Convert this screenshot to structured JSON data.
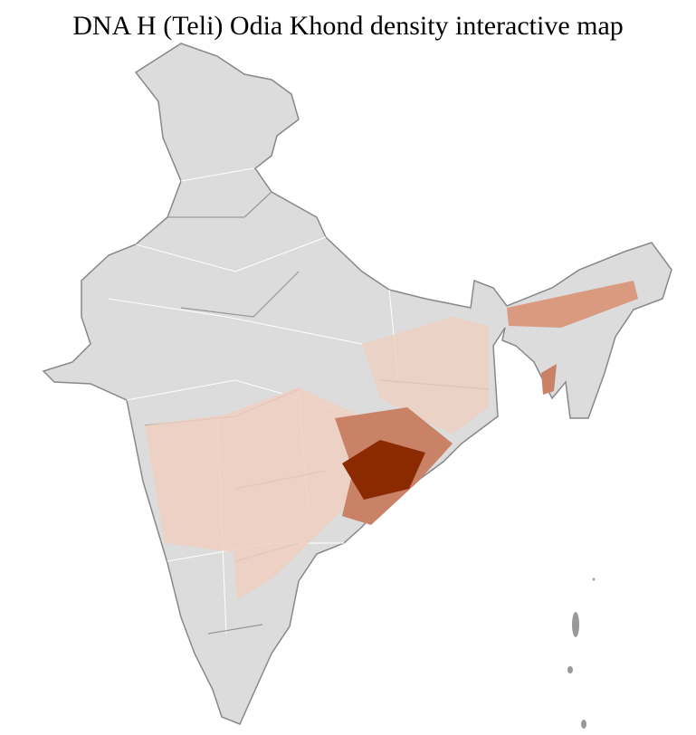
{
  "title": "DNA H (Teli) Odia Khond density interactive map"
}
